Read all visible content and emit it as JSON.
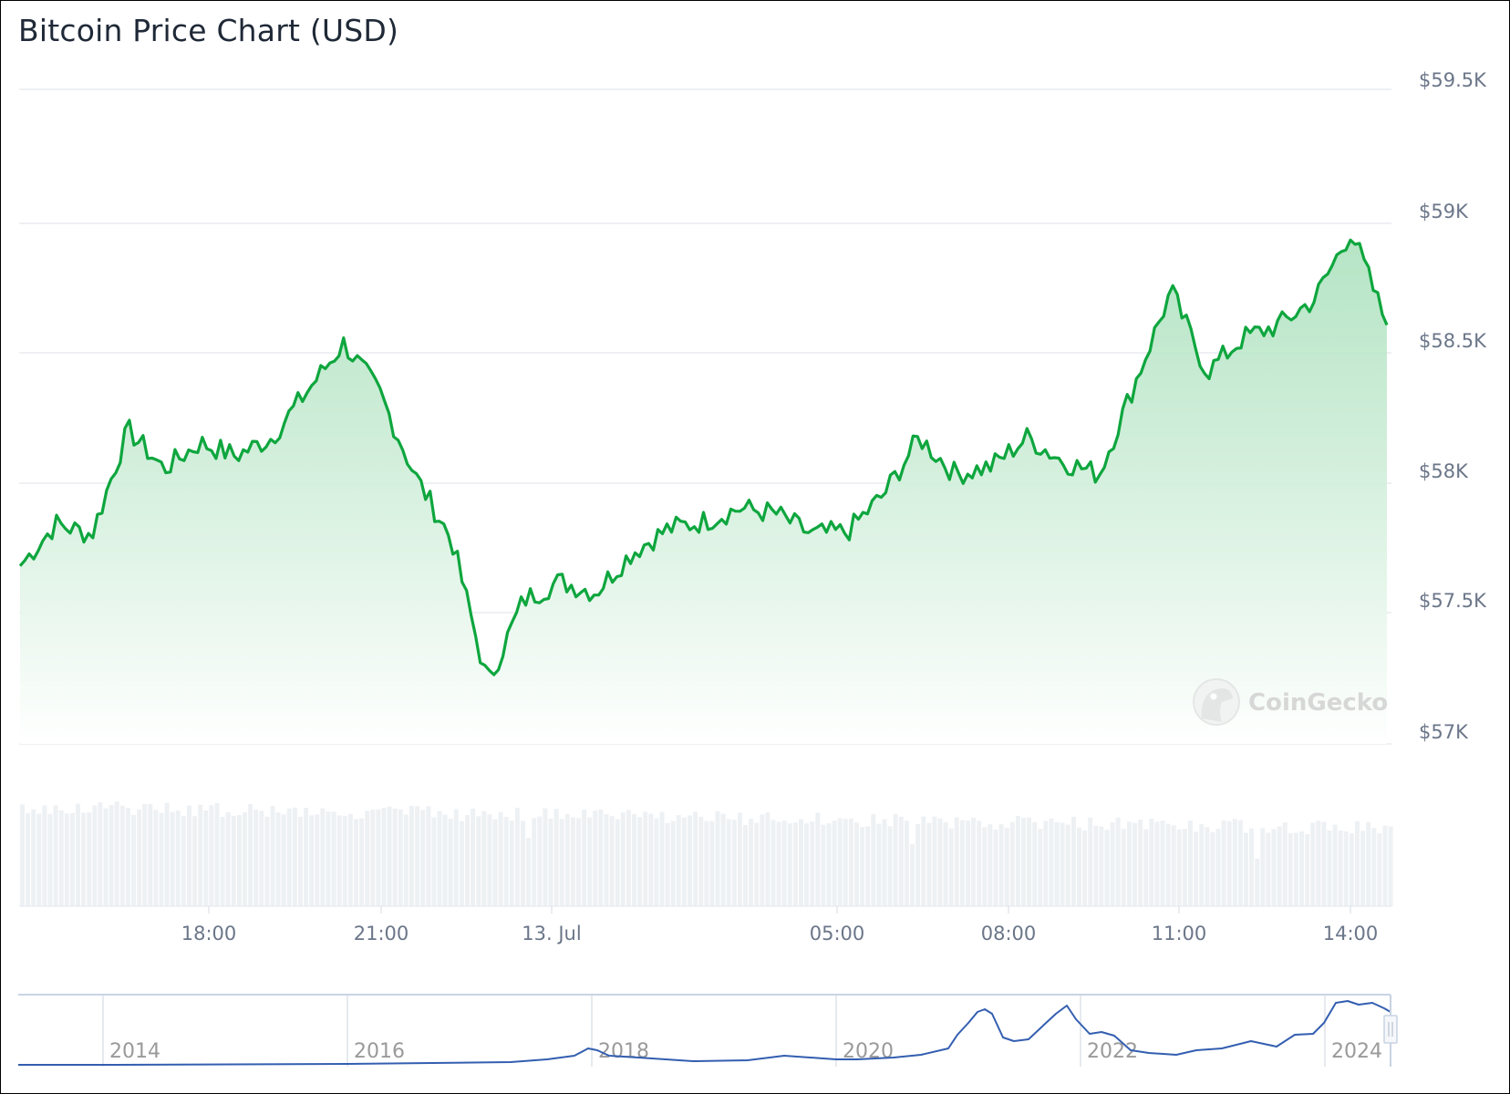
{
  "title": "Bitcoin Price Chart (USD)",
  "watermark": "CoinGecko",
  "colors": {
    "line": "#0ea63e",
    "fill_top": "#bfe8cc",
    "fill_bottom": "#ffffff",
    "grid": "#eef0f3",
    "volume": "#eef1f4",
    "axis_text": "#6b7689",
    "navigator_line": "#335eb0",
    "navigator_outline": "#c8d4e3"
  },
  "y_axis": {
    "ticks": [
      {
        "label": "$59.5K",
        "value": 59500
      },
      {
        "label": "$59K",
        "value": 59000
      },
      {
        "label": "$58.5K",
        "value": 58500
      },
      {
        "label": "$58K",
        "value": 58000
      },
      {
        "label": "$57.5K",
        "value": 57500
      },
      {
        "label": "$57K",
        "value": 57000
      }
    ]
  },
  "x_axis": {
    "ticks": [
      "18:00",
      "21:00",
      "13. Jul",
      "05:00",
      "08:00",
      "11:00",
      "14:00"
    ]
  },
  "navigator": {
    "years": [
      "2014",
      "2016",
      "2018",
      "2020",
      "2022",
      "2024"
    ]
  },
  "chart_data": {
    "type": "line",
    "title": "Bitcoin Price Chart (USD)",
    "xlabel": "",
    "ylabel": "",
    "ylim": [
      57000,
      59500
    ],
    "grid": true,
    "legend": "none",
    "x_tick_labels": [
      "18:00",
      "21:00",
      "13. Jul",
      "05:00",
      "08:00",
      "11:00",
      "14:00"
    ],
    "y_tick_labels": [
      "$57K",
      "$57.5K",
      "$58K",
      "$58.5K",
      "$59K",
      "$59.5K"
    ],
    "series": [
      {
        "name": "Price (USD)",
        "x": [
          "15:30",
          "16:00",
          "16:30",
          "17:00",
          "17:30",
          "18:00",
          "18:30",
          "19:00",
          "19:30",
          "20:00",
          "20:30",
          "21:00",
          "21:15",
          "21:30",
          "22:00",
          "22:30",
          "23:00",
          "23:30",
          "00:00",
          "01:00",
          "02:00",
          "03:00",
          "04:00",
          "05:00",
          "06:00",
          "07:00",
          "07:30",
          "08:00",
          "09:00",
          "10:00",
          "10:30",
          "11:00",
          "11:30",
          "12:00",
          "12:30",
          "13:00",
          "13:30",
          "14:00",
          "14:30"
        ],
        "values": [
          57680,
          57840,
          57800,
          58200,
          58050,
          58150,
          58100,
          58170,
          58350,
          58530,
          58340,
          58020,
          57780,
          57230,
          57550,
          57620,
          57580,
          57730,
          57820,
          57850,
          57900,
          57880,
          57800,
          57810,
          57950,
          58170,
          58030,
          58060,
          58170,
          58080,
          58030,
          58380,
          58730,
          58420,
          58550,
          58600,
          58700,
          58960,
          58600
        ]
      },
      {
        "name": "Volume",
        "note": "relative bar heights, roughly uniform",
        "values": []
      }
    ]
  }
}
